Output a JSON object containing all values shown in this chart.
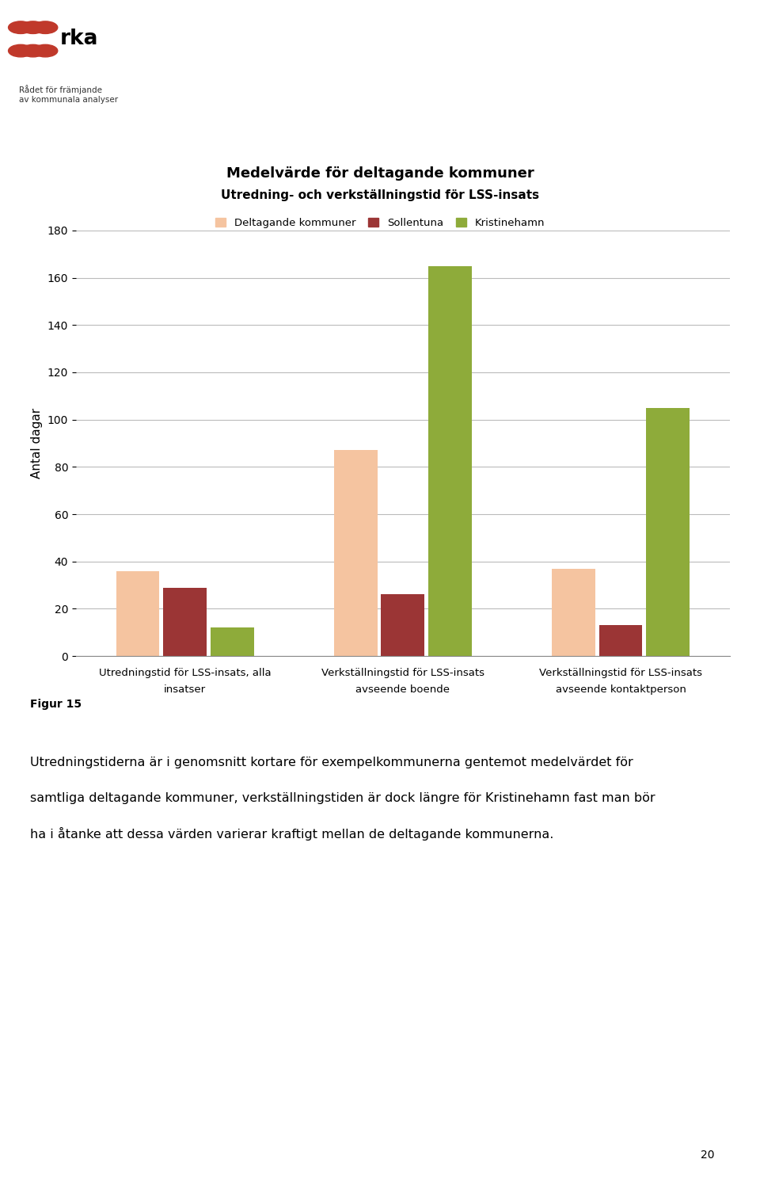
{
  "title1": "Medelvärde för deltagande kommuner",
  "title2": "Utredning- och verkställningstid för LSS-insats",
  "ylabel": "Antal dagar",
  "ylim": [
    0,
    180
  ],
  "yticks": [
    0,
    20,
    40,
    60,
    80,
    100,
    120,
    140,
    160,
    180
  ],
  "categories": [
    "Utredningstid för LSS-insats, alla\ninsatser",
    "Verkställningstid för LSS-insats\navseende boende",
    "Verkställningstid för LSS-insats\navseende kontaktperson"
  ],
  "series": {
    "Deltagande kommuner": [
      36,
      87,
      37
    ],
    "Sollentuna": [
      29,
      26,
      13
    ],
    "Kristinehamn": [
      12,
      165,
      105
    ]
  },
  "colors": {
    "Deltagande kommuner": "#F5C4A0",
    "Sollentuna": "#9B3535",
    "Kristinehamn": "#8EAB3A"
  },
  "figur_label": "Figur 15",
  "body_text_line1": "Utredningstiderna är i genomsnitt kortare för exempelkommunerna gentemot medelvärdet för",
  "body_text_line2": "samtliga deltagande kommuner, verkställningstiden är dock längre för Kristinehamn fast man bör",
  "body_text_line3": "ha i åtanke att dessa värden varierar kraftigt mellan de deltagande kommunerna.",
  "page_number": "20",
  "background_color": "#FFFFFF",
  "grid_color": "#BBBBBB",
  "logo_dot_color": "#C0392B",
  "logo_text_color": "#000000"
}
